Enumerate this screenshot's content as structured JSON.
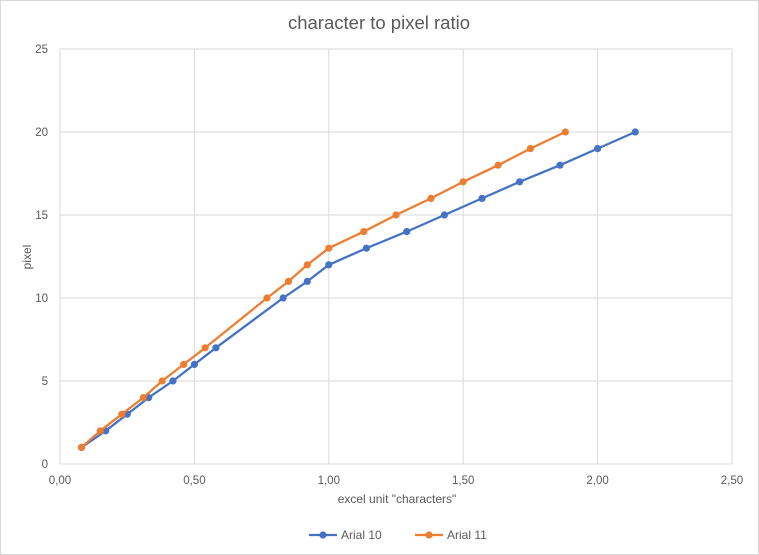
{
  "chart_data": {
    "type": "line",
    "title": "character to pixel ratio",
    "xlabel": "excel unit \"characters\"",
    "ylabel": "pixel",
    "xlim": [
      0,
      2.5
    ],
    "ylim": [
      0,
      25
    ],
    "x_ticks": [
      0,
      0.5,
      1.0,
      1.5,
      2.0,
      2.5
    ],
    "x_tick_labels": [
      "0,00",
      "0,50",
      "1,00",
      "1,50",
      "2,00",
      "2,50"
    ],
    "y_ticks": [
      0,
      5,
      10,
      15,
      20,
      25
    ],
    "y_tick_labels": [
      "0",
      "5",
      "10",
      "15",
      "20",
      "25"
    ],
    "grid": "vertical and horizontal",
    "legend_position": "bottom",
    "series": [
      {
        "name": "Arial 10",
        "color": "#4472c4",
        "points": [
          [
            0.08,
            1
          ],
          [
            0.17,
            2
          ],
          [
            0.25,
            3
          ],
          [
            0.33,
            4
          ],
          [
            0.42,
            5
          ],
          [
            0.5,
            6
          ],
          [
            0.58,
            7
          ],
          [
            0.83,
            10
          ],
          [
            0.92,
            11
          ],
          [
            1.0,
            12
          ],
          [
            1.14,
            13
          ],
          [
            1.29,
            14
          ],
          [
            1.43,
            15
          ],
          [
            1.57,
            16
          ],
          [
            1.71,
            17
          ],
          [
            1.86,
            18
          ],
          [
            2.0,
            19
          ],
          [
            2.14,
            20
          ]
        ]
      },
      {
        "name": "Arial 11",
        "color": "#ed7d31",
        "points": [
          [
            0.08,
            1
          ],
          [
            0.15,
            2
          ],
          [
            0.23,
            3
          ],
          [
            0.31,
            4
          ],
          [
            0.38,
            5
          ],
          [
            0.46,
            6
          ],
          [
            0.54,
            7
          ],
          [
            0.77,
            10
          ],
          [
            0.85,
            11
          ],
          [
            0.92,
            12
          ],
          [
            1.0,
            13
          ],
          [
            1.13,
            14
          ],
          [
            1.25,
            15
          ],
          [
            1.38,
            16
          ],
          [
            1.5,
            17
          ],
          [
            1.63,
            18
          ],
          [
            1.75,
            19
          ],
          [
            1.88,
            20
          ]
        ]
      }
    ]
  }
}
